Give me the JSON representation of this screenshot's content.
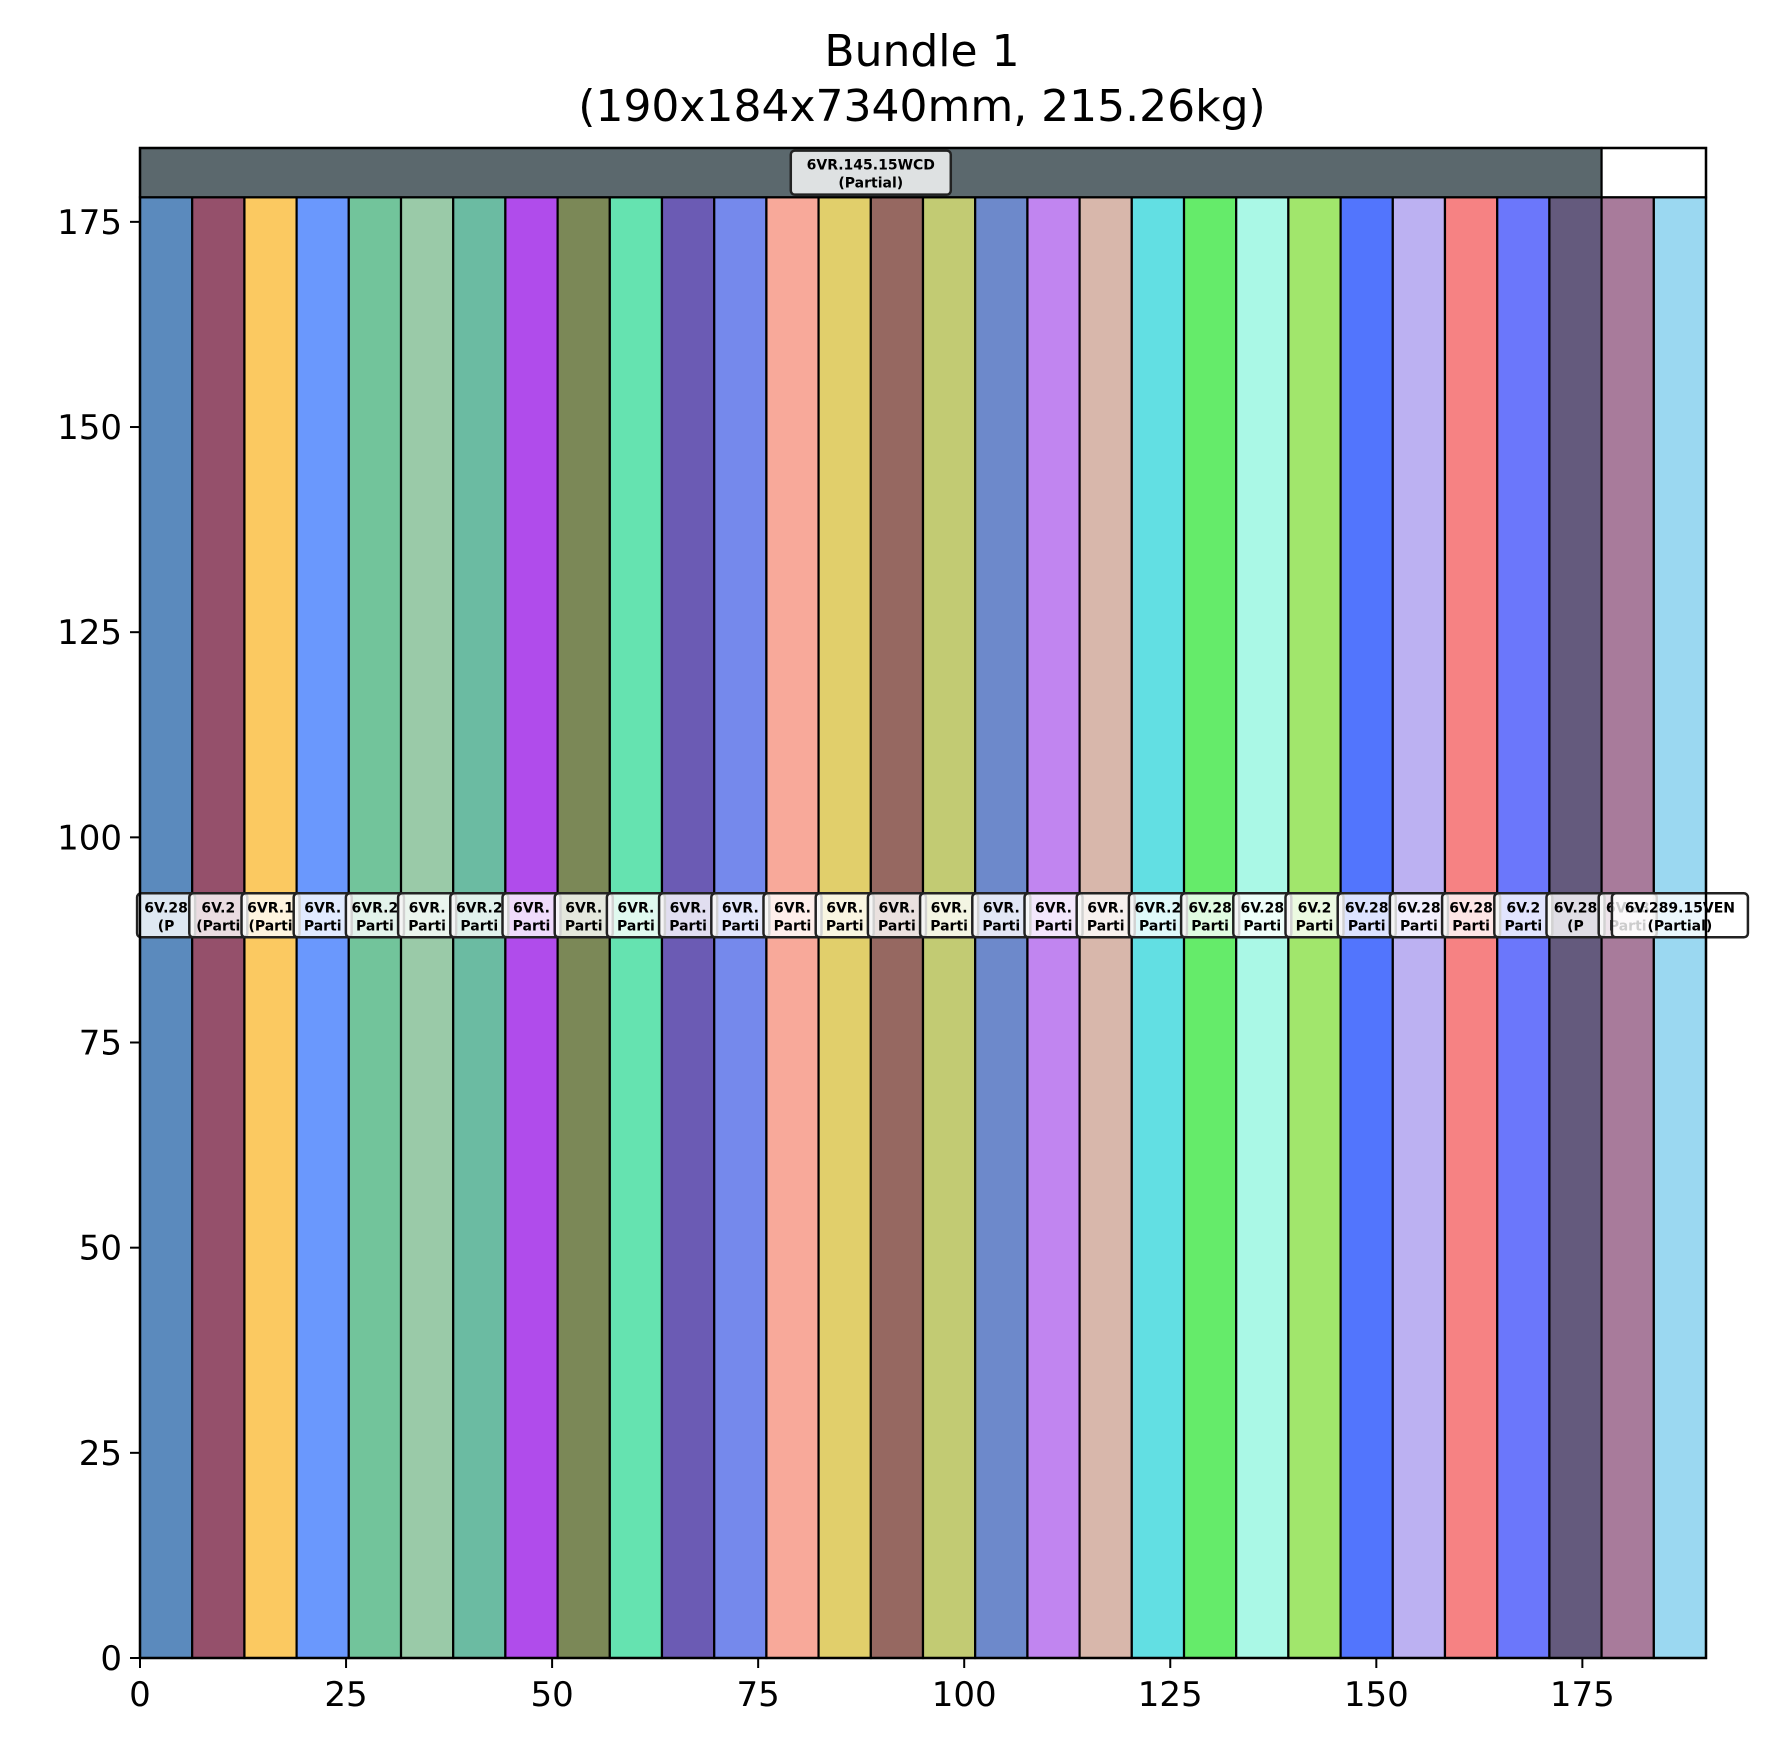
{
  "chart_data": {
    "type": "bar",
    "title_line1": "Bundle 1",
    "title_line2": "(190x184x7340mm, 215.26kg)",
    "xlabel": "",
    "ylabel": "",
    "xlim": [
      0,
      190
    ],
    "ylim": [
      0,
      184
    ],
    "x_ticks": [
      "0",
      "25",
      "50",
      "75",
      "100",
      "125",
      "150",
      "175"
    ],
    "y_ticks": [
      "0",
      "25",
      "50",
      "75",
      "100",
      "125",
      "150",
      "175"
    ],
    "bars": [
      {
        "x0": 0.0,
        "x1": 6.33,
        "y0": 0,
        "y1": 178,
        "color": "#5b8abd",
        "label": "6V.28",
        "sub": "(P"
      },
      {
        "x0": 6.33,
        "x1": 12.67,
        "y0": 0,
        "y1": 178,
        "color": "#95506b",
        "label": "6V.2",
        "sub": "(Parti"
      },
      {
        "x0": 12.67,
        "x1": 19.0,
        "y0": 0,
        "y1": 178,
        "color": "#fbc961",
        "label": "6VR.1",
        "sub": "(Parti"
      },
      {
        "x0": 19.0,
        "x1": 25.33,
        "y0": 0,
        "y1": 178,
        "color": "#6a98fd",
        "label": "6VR.",
        "sub": "Parti"
      },
      {
        "x0": 25.33,
        "x1": 31.67,
        "y0": 0,
        "y1": 178,
        "color": "#72c49b",
        "label": "6VR.2",
        "sub": "Parti"
      },
      {
        "x0": 31.67,
        "x1": 38.0,
        "y0": 0,
        "y1": 178,
        "color": "#9acaa8",
        "label": "6VR.",
        "sub": "Parti"
      },
      {
        "x0": 38.0,
        "x1": 44.33,
        "y0": 0,
        "y1": 178,
        "color": "#6bbba2",
        "label": "6VR.2",
        "sub": "Parti"
      },
      {
        "x0": 44.33,
        "x1": 50.67,
        "y0": 0,
        "y1": 178,
        "color": "#b04ceb",
        "label": "6VR.",
        "sub": "Parti"
      },
      {
        "x0": 50.67,
        "x1": 57.0,
        "y0": 0,
        "y1": 178,
        "color": "#7b8857",
        "label": "6VR.",
        "sub": "Parti"
      },
      {
        "x0": 57.0,
        "x1": 63.33,
        "y0": 0,
        "y1": 178,
        "color": "#65e3b0",
        "label": "6VR.",
        "sub": "Parti"
      },
      {
        "x0": 63.33,
        "x1": 69.67,
        "y0": 0,
        "y1": 178,
        "color": "#6b5bb4",
        "label": "6VR.",
        "sub": "Parti"
      },
      {
        "x0": 69.67,
        "x1": 76.0,
        "y0": 0,
        "y1": 178,
        "color": "#7589ec",
        "label": "6VR.",
        "sub": "Parti"
      },
      {
        "x0": 76.0,
        "x1": 82.33,
        "y0": 0,
        "y1": 178,
        "color": "#f8a99a",
        "label": "6VR.",
        "sub": "Parti"
      },
      {
        "x0": 82.33,
        "x1": 88.67,
        "y0": 0,
        "y1": 178,
        "color": "#e1cf6b",
        "label": "6VR.",
        "sub": "Parti"
      },
      {
        "x0": 88.67,
        "x1": 95.0,
        "y0": 0,
        "y1": 178,
        "color": "#966861",
        "label": "6VR.",
        "sub": "Parti"
      },
      {
        "x0": 95.0,
        "x1": 101.33,
        "y0": 0,
        "y1": 178,
        "color": "#c2cb73",
        "label": "6VR.",
        "sub": "Parti"
      },
      {
        "x0": 101.33,
        "x1": 107.67,
        "y0": 0,
        "y1": 178,
        "color": "#6d89cb",
        "label": "6VR.",
        "sub": "Parti"
      },
      {
        "x0": 107.67,
        "x1": 114.0,
        "y0": 0,
        "y1": 178,
        "color": "#c185f0",
        "label": "6VR.",
        "sub": "Parti"
      },
      {
        "x0": 114.0,
        "x1": 120.33,
        "y0": 0,
        "y1": 178,
        "color": "#d8b7ab",
        "label": "6VR.",
        "sub": "Parti"
      },
      {
        "x0": 120.33,
        "x1": 126.67,
        "y0": 0,
        "y1": 178,
        "color": "#62dfe3",
        "label": "6VR.2",
        "sub": "Parti"
      },
      {
        "x0": 126.67,
        "x1": 133.0,
        "y0": 0,
        "y1": 178,
        "color": "#65eb6a",
        "label": "6V.28",
        "sub": "Parti"
      },
      {
        "x0": 133.0,
        "x1": 139.33,
        "y0": 0,
        "y1": 178,
        "color": "#aaf8e6",
        "label": "6V.28",
        "sub": "Parti"
      },
      {
        "x0": 139.33,
        "x1": 145.67,
        "y0": 0,
        "y1": 178,
        "color": "#a1e66c",
        "label": "6V.2",
        "sub": "Parti"
      },
      {
        "x0": 145.67,
        "x1": 152.0,
        "y0": 0,
        "y1": 178,
        "color": "#5275fd",
        "label": "6V.28",
        "sub": "Parti"
      },
      {
        "x0": 152.0,
        "x1": 158.33,
        "y0": 0,
        "y1": 178,
        "color": "#bcb1f2",
        "label": "6V.28",
        "sub": "Parti"
      },
      {
        "x0": 158.33,
        "x1": 164.67,
        "y0": 0,
        "y1": 178,
        "color": "#f68283",
        "label": "6V.28",
        "sub": "Parti"
      },
      {
        "x0": 164.67,
        "x1": 171.0,
        "y0": 0,
        "y1": 178,
        "color": "#6b77fb",
        "label": "6V.2",
        "sub": "Parti"
      },
      {
        "x0": 171.0,
        "x1": 177.33,
        "y0": 0,
        "y1": 178,
        "color": "#645a7d",
        "label": "6V.28",
        "sub": "(P"
      },
      {
        "x0": 177.33,
        "x1": 183.67,
        "y0": 0,
        "y1": 178,
        "color": "#a87b9b",
        "label": "6V.28",
        "sub": "Parti"
      },
      {
        "x0": 183.67,
        "x1": 190.0,
        "y0": 0,
        "y1": 178,
        "color": "#9bd8f1",
        "label": "6V.289.15VEN",
        "sub": "(Partial)"
      },
      {
        "x0": 0.0,
        "x1": 177.33,
        "y0": 178,
        "y1": 184,
        "color": "#5b686d",
        "label": "6VR.145.15WCD",
        "sub": "(Partial)",
        "top": true
      }
    ]
  }
}
